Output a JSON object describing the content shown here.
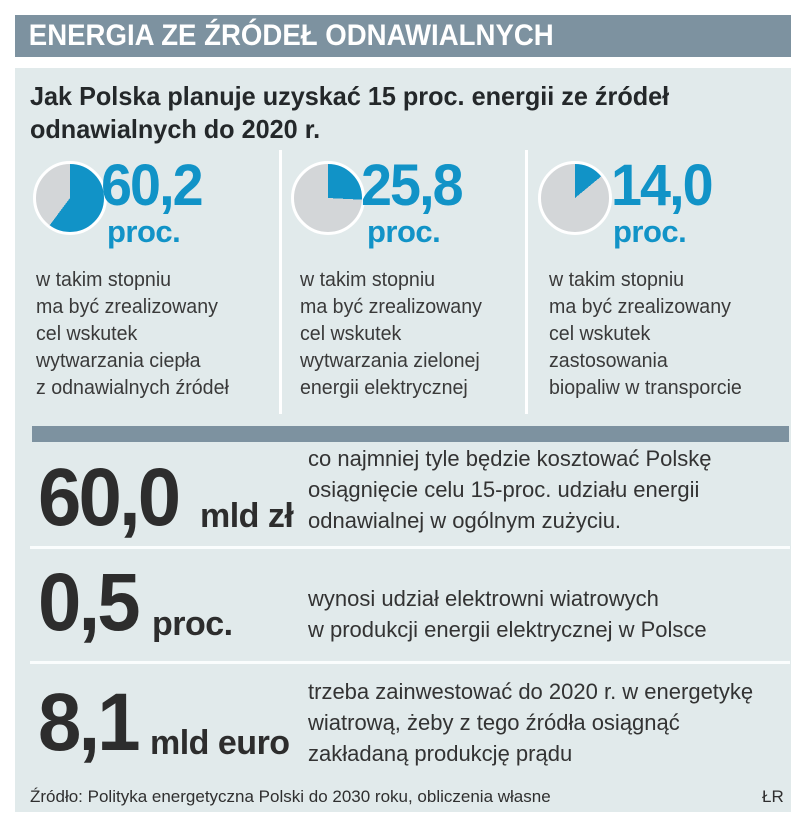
{
  "header": {
    "title": "ENERGIA ZE ŹRÓDEŁ ODNAWIALNYCH"
  },
  "subtitle": {
    "line1": "Jak Polska planuje uzyskać 15 proc. energii ze źródeł",
    "line2": "odnawialnych do 2020 r."
  },
  "chart_data": {
    "type": "pie",
    "title": "Jak Polska planuje uzyskać 15 proc. energii ze źródeł odnawialnych do 2020 r.",
    "series": [
      {
        "value_pct": 60.2,
        "display": "60,2",
        "unit": "proc.",
        "desc_lines": [
          "w takim stopniu",
          "ma być zrealizowany",
          "cel wskutek",
          "wytwarzania ciepła",
          "z odnawialnych źródeł"
        ]
      },
      {
        "value_pct": 25.8,
        "display": "25,8",
        "unit": "proc.",
        "desc_lines": [
          "w takim stopniu",
          "ma być zrealizowany",
          "cel wskutek",
          "wytwarzania zielonej",
          "energii elektrycznej"
        ]
      },
      {
        "value_pct": 14.0,
        "display": "14,0",
        "unit": "proc.",
        "desc_lines": [
          "w takim stopniu",
          "ma być zrealizowany",
          "cel wskutek",
          "zastosowania",
          "biopaliw w transporcie"
        ]
      }
    ],
    "stats": [
      {
        "value": "60,0",
        "unit": "mld zł",
        "desc_lines": [
          "co najmniej tyle będzie kosztować Polskę",
          "osiągnięcie celu 15-proc. udziału energii",
          "odnawialnej w ogólnym zużyciu."
        ]
      },
      {
        "value": "0,5",
        "unit": "proc.",
        "desc_lines": [
          "wynosi udział elektrowni wiatrowych",
          "w produkcji energii elektrycznej w Polsce"
        ]
      },
      {
        "value": "8,1",
        "unit": "mld euro",
        "desc_lines": [
          "trzeba zainwestować do 2020 r. w energetykę",
          "wiatrową, żeby z tego źródła osiągnąć",
          "zakładaną produkcję prądu"
        ]
      }
    ]
  },
  "footer": {
    "source": "Źródło: Polityka energetyczna Polski do 2030 roku, obliczenia własne",
    "credit": "ŁR"
  },
  "colors": {
    "accent": "#1193c7",
    "pie_rest": "#d3d6d8",
    "header_bg": "#7d92a0",
    "panel_bg": "#e1eaeb",
    "bar": "#7d92a0",
    "text_dark": "#2d2d2d",
    "text_body": "#3a3a3a"
  }
}
